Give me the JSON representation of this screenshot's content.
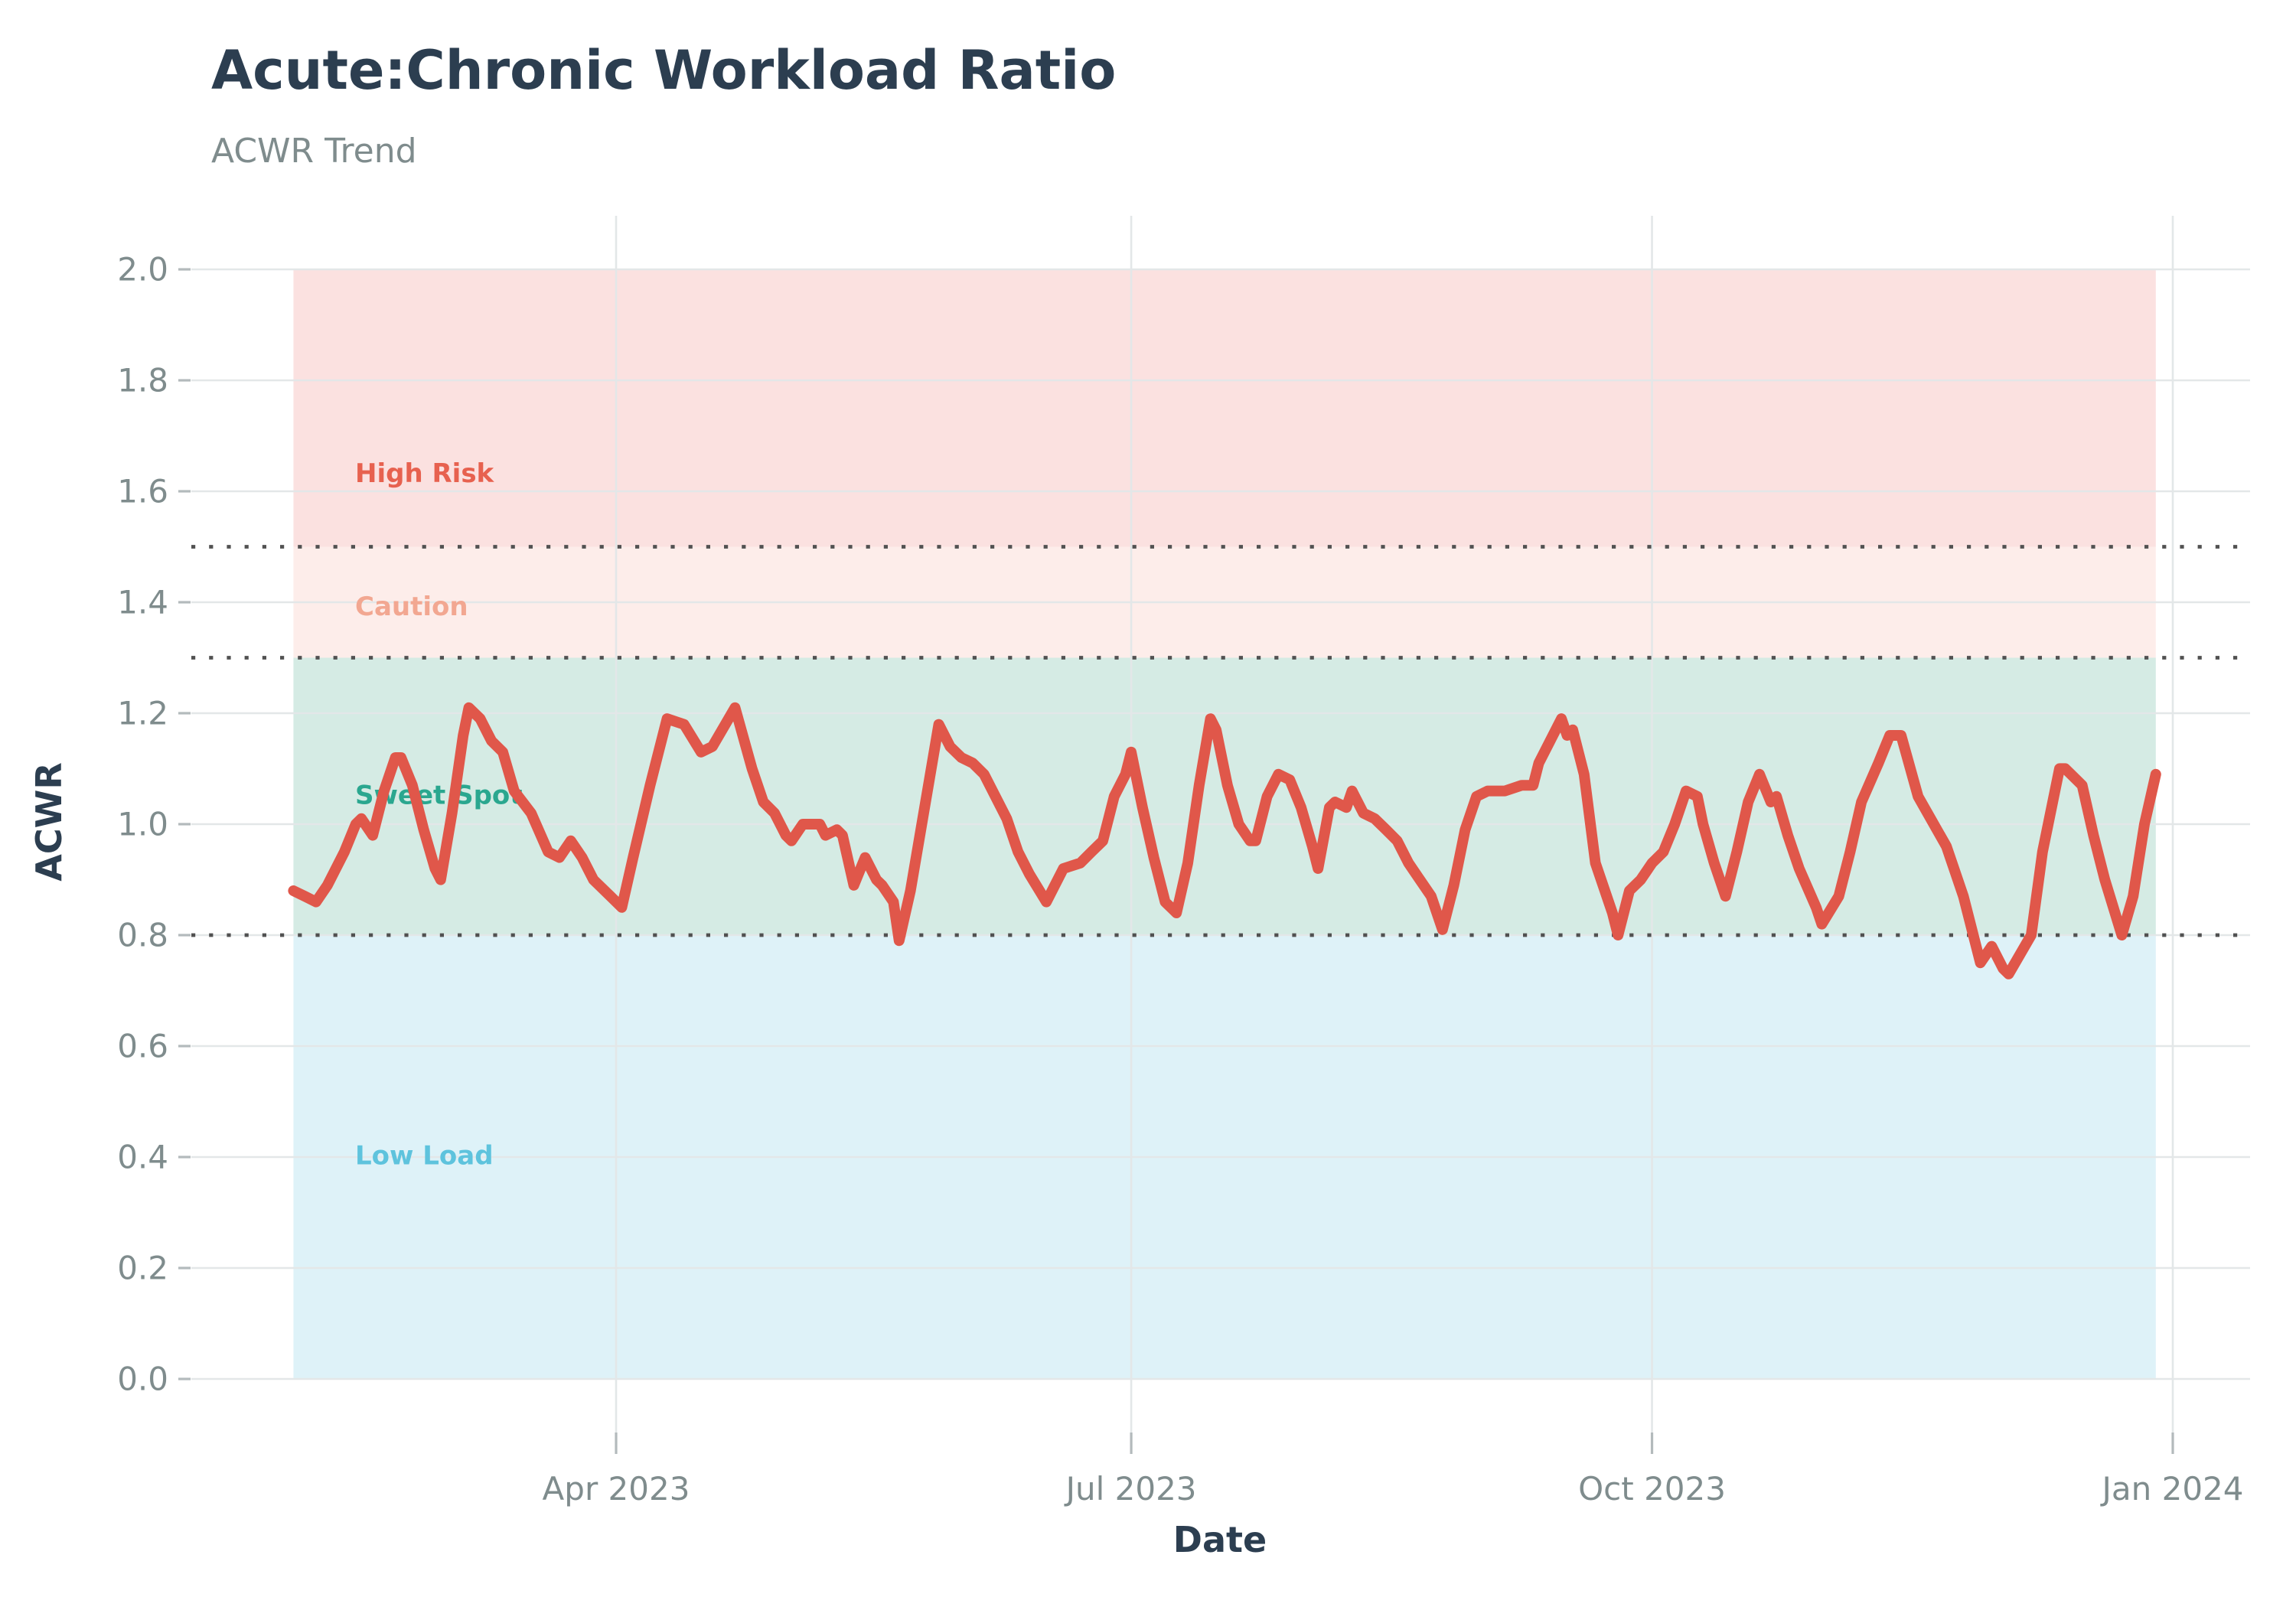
{
  "title": "Acute:Chronic Workload Ratio",
  "subtitle": "ACWR Trend",
  "style": {
    "background": "#ffffff",
    "title_color": "#2c3e50",
    "subtitle_color": "#7f8c8d",
    "tick_label_color": "#7f8c8d",
    "axis_label_color": "#2c3e50",
    "grid_color": "#e3e7e8",
    "threshold_color": "#515151",
    "tick_mark_color": "#b3babc",
    "line_color": "#e0574a"
  },
  "chart_data": {
    "type": "line",
    "title": "Acute:Chronic Workload Ratio",
    "subtitle": "ACWR Trend",
    "xlabel": "Date",
    "ylabel": "ACWR",
    "ylim": [
      0.0,
      2.0
    ],
    "grid": true,
    "legend_position": "none",
    "y_ticks": [
      {
        "value": 0.0,
        "label": "0.0"
      },
      {
        "value": 0.2,
        "label": "0.2"
      },
      {
        "value": 0.4,
        "label": "0.4"
      },
      {
        "value": 0.6,
        "label": "0.6"
      },
      {
        "value": 0.8,
        "label": "0.8"
      },
      {
        "value": 1.0,
        "label": "1.0"
      },
      {
        "value": 1.2,
        "label": "1.2"
      },
      {
        "value": 1.4,
        "label": "1.4"
      },
      {
        "value": 1.6,
        "label": "1.6"
      },
      {
        "value": 1.8,
        "label": "1.8"
      },
      {
        "value": 2.0,
        "label": "2.0"
      }
    ],
    "x_ticks": [
      {
        "date": "2023-04-01",
        "label": "Apr 2023"
      },
      {
        "date": "2023-07-01",
        "label": "Jul 2023"
      },
      {
        "date": "2023-10-01",
        "label": "Oct 2023"
      },
      {
        "date": "2024-01-01",
        "label": "Jan 2024"
      }
    ],
    "thresholds": [
      {
        "value": 1.5
      },
      {
        "value": 1.3
      },
      {
        "value": 0.8
      }
    ],
    "zones": [
      {
        "name": "High Risk",
        "from": 1.5,
        "to": 2.0,
        "fill": "#fbe1e0",
        "label_color": "#e7614f",
        "label_at": 1.63
      },
      {
        "name": "Caution",
        "from": 1.3,
        "to": 1.5,
        "fill": "#fdedea",
        "label_color": "#f2a791",
        "label_at": 1.39
      },
      {
        "name": "Sweet Spot",
        "from": 0.8,
        "to": 1.3,
        "fill": "#d5ebe4",
        "label_color": "#2aa78f",
        "label_at": 1.05
      },
      {
        "name": "Low Load",
        "from": 0.0,
        "to": 0.8,
        "fill": "#def2f8",
        "label_color": "#5ec3dd",
        "label_at": 0.4
      }
    ],
    "series": [
      {
        "name": "ACWR",
        "color": "#e0574a",
        "points": [
          [
            "2023-02-03",
            0.88
          ],
          [
            "2023-02-05",
            0.87
          ],
          [
            "2023-02-07",
            0.86
          ],
          [
            "2023-02-09",
            0.89
          ],
          [
            "2023-02-12",
            0.95
          ],
          [
            "2023-02-14",
            1.0
          ],
          [
            "2023-02-15",
            1.01
          ],
          [
            "2023-02-17",
            0.98
          ],
          [
            "2023-02-19",
            1.06
          ],
          [
            "2023-02-21",
            1.12
          ],
          [
            "2023-02-22",
            1.12
          ],
          [
            "2023-02-24",
            1.07
          ],
          [
            "2023-02-26",
            0.99
          ],
          [
            "2023-02-28",
            0.92
          ],
          [
            "2023-03-01",
            0.9
          ],
          [
            "2023-03-03",
            1.02
          ],
          [
            "2023-03-05",
            1.16
          ],
          [
            "2023-03-06",
            1.21
          ],
          [
            "2023-03-08",
            1.19
          ],
          [
            "2023-03-10",
            1.15
          ],
          [
            "2023-03-12",
            1.13
          ],
          [
            "2023-03-14",
            1.06
          ],
          [
            "2023-03-17",
            1.02
          ],
          [
            "2023-03-20",
            0.95
          ],
          [
            "2023-03-22",
            0.94
          ],
          [
            "2023-03-24",
            0.97
          ],
          [
            "2023-03-26",
            0.94
          ],
          [
            "2023-03-28",
            0.9
          ],
          [
            "2023-03-31",
            0.87
          ],
          [
            "2023-04-02",
            0.85
          ],
          [
            "2023-04-04",
            0.94
          ],
          [
            "2023-04-07",
            1.07
          ],
          [
            "2023-04-10",
            1.19
          ],
          [
            "2023-04-13",
            1.18
          ],
          [
            "2023-04-16",
            1.13
          ],
          [
            "2023-04-18",
            1.14
          ],
          [
            "2023-04-22",
            1.21
          ],
          [
            "2023-04-25",
            1.1
          ],
          [
            "2023-04-27",
            1.04
          ],
          [
            "2023-04-29",
            1.02
          ],
          [
            "2023-05-01",
            0.98
          ],
          [
            "2023-05-02",
            0.97
          ],
          [
            "2023-05-04",
            1.0
          ],
          [
            "2023-05-07",
            1.0
          ],
          [
            "2023-05-08",
            0.98
          ],
          [
            "2023-05-10",
            0.99
          ],
          [
            "2023-05-11",
            0.98
          ],
          [
            "2023-05-13",
            0.89
          ],
          [
            "2023-05-15",
            0.94
          ],
          [
            "2023-05-17",
            0.9
          ],
          [
            "2023-05-18",
            0.89
          ],
          [
            "2023-05-20",
            0.86
          ],
          [
            "2023-05-21",
            0.79
          ],
          [
            "2023-05-23",
            0.88
          ],
          [
            "2023-05-26",
            1.06
          ],
          [
            "2023-05-28",
            1.18
          ],
          [
            "2023-05-30",
            1.14
          ],
          [
            "2023-06-01",
            1.12
          ],
          [
            "2023-06-03",
            1.11
          ],
          [
            "2023-06-05",
            1.09
          ],
          [
            "2023-06-07",
            1.05
          ],
          [
            "2023-06-09",
            1.01
          ],
          [
            "2023-06-11",
            0.95
          ],
          [
            "2023-06-13",
            0.91
          ],
          [
            "2023-06-16",
            0.86
          ],
          [
            "2023-06-19",
            0.92
          ],
          [
            "2023-06-22",
            0.93
          ],
          [
            "2023-06-24",
            0.95
          ],
          [
            "2023-06-26",
            0.97
          ],
          [
            "2023-06-28",
            1.05
          ],
          [
            "2023-06-30",
            1.09
          ],
          [
            "2023-07-01",
            1.13
          ],
          [
            "2023-07-03",
            1.03
          ],
          [
            "2023-07-05",
            0.94
          ],
          [
            "2023-07-07",
            0.86
          ],
          [
            "2023-07-09",
            0.84
          ],
          [
            "2023-07-11",
            0.93
          ],
          [
            "2023-07-13",
            1.07
          ],
          [
            "2023-07-15",
            1.19
          ],
          [
            "2023-07-16",
            1.17
          ],
          [
            "2023-07-18",
            1.07
          ],
          [
            "2023-07-20",
            1.0
          ],
          [
            "2023-07-22",
            0.97
          ],
          [
            "2023-07-23",
            0.97
          ],
          [
            "2023-07-25",
            1.05
          ],
          [
            "2023-07-27",
            1.09
          ],
          [
            "2023-07-29",
            1.08
          ],
          [
            "2023-07-31",
            1.03
          ],
          [
            "2023-08-02",
            0.96
          ],
          [
            "2023-08-03",
            0.92
          ],
          [
            "2023-08-05",
            1.03
          ],
          [
            "2023-08-06",
            1.04
          ],
          [
            "2023-08-08",
            1.03
          ],
          [
            "2023-08-09",
            1.06
          ],
          [
            "2023-08-11",
            1.02
          ],
          [
            "2023-08-13",
            1.01
          ],
          [
            "2023-08-15",
            0.99
          ],
          [
            "2023-08-17",
            0.97
          ],
          [
            "2023-08-19",
            0.93
          ],
          [
            "2023-08-21",
            0.9
          ],
          [
            "2023-08-23",
            0.87
          ],
          [
            "2023-08-25",
            0.81
          ],
          [
            "2023-08-27",
            0.89
          ],
          [
            "2023-08-29",
            0.99
          ],
          [
            "2023-08-31",
            1.05
          ],
          [
            "2023-09-02",
            1.06
          ],
          [
            "2023-09-05",
            1.06
          ],
          [
            "2023-09-08",
            1.07
          ],
          [
            "2023-09-10",
            1.07
          ],
          [
            "2023-09-11",
            1.11
          ],
          [
            "2023-09-13",
            1.15
          ],
          [
            "2023-09-15",
            1.19
          ],
          [
            "2023-09-16",
            1.16
          ],
          [
            "2023-09-17",
            1.17
          ],
          [
            "2023-09-19",
            1.09
          ],
          [
            "2023-09-21",
            0.93
          ],
          [
            "2023-09-24",
            0.84
          ],
          [
            "2023-09-25",
            0.8
          ],
          [
            "2023-09-27",
            0.88
          ],
          [
            "2023-09-29",
            0.9
          ],
          [
            "2023-10-01",
            0.93
          ],
          [
            "2023-10-03",
            0.95
          ],
          [
            "2023-10-05",
            1.0
          ],
          [
            "2023-10-07",
            1.06
          ],
          [
            "2023-10-09",
            1.05
          ],
          [
            "2023-10-10",
            1.0
          ],
          [
            "2023-10-12",
            0.93
          ],
          [
            "2023-10-14",
            0.87
          ],
          [
            "2023-10-16",
            0.95
          ],
          [
            "2023-10-18",
            1.04
          ],
          [
            "2023-10-20",
            1.09
          ],
          [
            "2023-10-22",
            1.04
          ],
          [
            "2023-10-23",
            1.05
          ],
          [
            "2023-10-25",
            0.98
          ],
          [
            "2023-10-27",
            0.92
          ],
          [
            "2023-10-30",
            0.85
          ],
          [
            "2023-10-31",
            0.82
          ],
          [
            "2023-11-03",
            0.87
          ],
          [
            "2023-11-05",
            0.95
          ],
          [
            "2023-11-07",
            1.04
          ],
          [
            "2023-11-10",
            1.11
          ],
          [
            "2023-11-12",
            1.16
          ],
          [
            "2023-11-14",
            1.16
          ],
          [
            "2023-11-17",
            1.05
          ],
          [
            "2023-11-22",
            0.96
          ],
          [
            "2023-11-25",
            0.87
          ],
          [
            "2023-11-27",
            0.79
          ],
          [
            "2023-11-28",
            0.75
          ],
          [
            "2023-11-30",
            0.78
          ],
          [
            "2023-12-02",
            0.74
          ],
          [
            "2023-12-03",
            0.73
          ],
          [
            "2023-12-07",
            0.8
          ],
          [
            "2023-12-09",
            0.95
          ],
          [
            "2023-12-12",
            1.1
          ],
          [
            "2023-12-13",
            1.1
          ],
          [
            "2023-12-16",
            1.07
          ],
          [
            "2023-12-18",
            0.98
          ],
          [
            "2023-12-20",
            0.9
          ],
          [
            "2023-12-23",
            0.8
          ],
          [
            "2023-12-25",
            0.87
          ],
          [
            "2023-12-27",
            1.0
          ],
          [
            "2023-12-29",
            1.09
          ]
        ]
      }
    ]
  }
}
